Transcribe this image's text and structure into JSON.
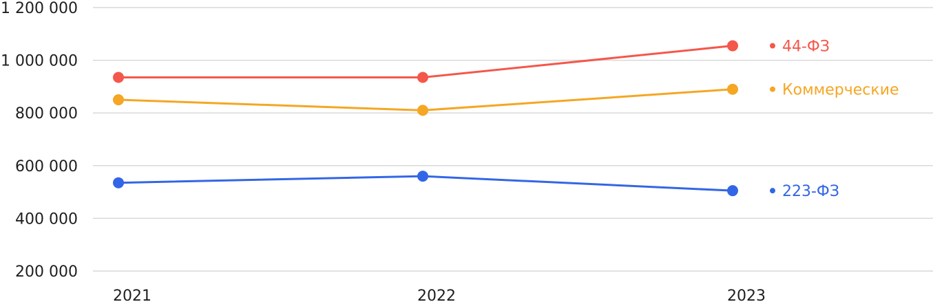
{
  "chart_data": {
    "type": "line",
    "categories": [
      "2021",
      "2022",
      "2023"
    ],
    "series": [
      {
        "name": "44-ФЗ",
        "values": [
          935000,
          935000,
          1055000
        ],
        "color": "#f4574b"
      },
      {
        "name": "Коммерческие",
        "values": [
          850000,
          810000,
          890000
        ],
        "color": "#f5a623"
      },
      {
        "name": "223-ФЗ",
        "values": [
          535000,
          560000,
          505000
        ],
        "color": "#3366e6"
      }
    ],
    "y_ticks": [
      "1 200 000",
      "1 000 000",
      "800 000",
      "600 000",
      "400 000",
      "200 000"
    ],
    "y_tick_values": [
      1200000,
      1000000,
      800000,
      600000,
      400000,
      200000
    ],
    "ylim": [
      200000,
      1200000
    ],
    "grid": true,
    "legend": "right"
  }
}
